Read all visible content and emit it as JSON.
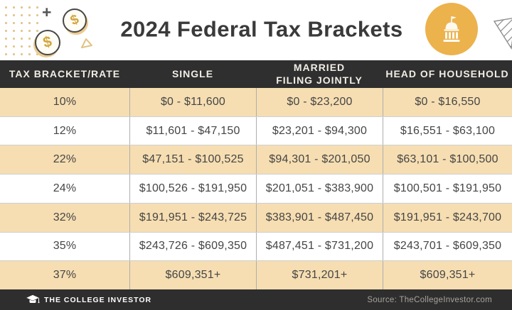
{
  "header": {
    "title": "2024 Federal Tax Brackets"
  },
  "icons": {
    "plus_glyph": "+",
    "dollar_glyph": "$"
  },
  "chart_data": {
    "type": "table",
    "title": "2024 Federal Tax Brackets",
    "columns": [
      "TAX BRACKET/RATE",
      "SINGLE",
      "MARRIED\nFILING JOINTLY",
      "HEAD OF HOUSEHOLD"
    ],
    "rows": [
      [
        "10%",
        "$0 - $11,600",
        "$0 - $23,200",
        "$0 - $16,550"
      ],
      [
        "12%",
        "$11,601 - $47,150",
        "$23,201 - $94,300",
        "$16,551 - $63,100"
      ],
      [
        "22%",
        "$47,151 - $100,525",
        "$94,301 - $201,050",
        "$63,101 - $100,500"
      ],
      [
        "24%",
        "$100,526 - $191,950",
        "$201,051 - $383,900",
        "$100,501 - $191,950"
      ],
      [
        "32%",
        "$191,951 - $243,725",
        "$383,901 - $487,450",
        "$191,951 - $243,700"
      ],
      [
        "35%",
        "$243,726 - $609,350",
        "$487,451 - $731,200",
        "$243,701 - $609,350"
      ],
      [
        "37%",
        "$609,351+",
        "$731,201+",
        "$609,351+"
      ]
    ]
  },
  "footer": {
    "brand": "THE COLLEGE INVESTOR",
    "source": "Source: TheCollegeInvestor.com"
  },
  "colors": {
    "row_tan": "#f6deb2",
    "header_dark": "#2f2f2f",
    "accent_orange": "#ecb24c",
    "coin_gold": "#d2a53c",
    "title_text": "#3a3a3a"
  }
}
